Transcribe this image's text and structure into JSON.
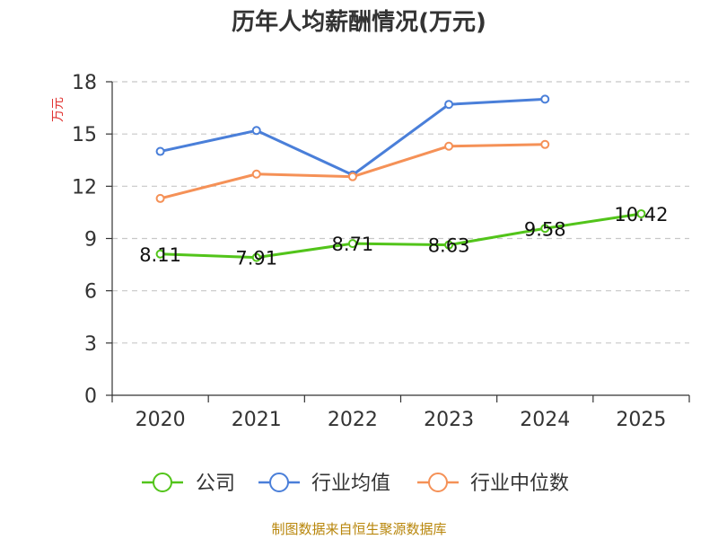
{
  "chart_data": {
    "type": "line",
    "title": "历年人均薪酬情况(万元)",
    "ylabel": "万元",
    "xlabel": "",
    "categories": [
      "2020",
      "2021",
      "2022",
      "2023",
      "2024",
      "2025"
    ],
    "ylim": [
      0,
      18
    ],
    "yticks": [
      0,
      3,
      6,
      9,
      12,
      15,
      18
    ],
    "grid": true,
    "legend_position": "bottom",
    "series": [
      {
        "name": "公司",
        "color": "#52c41a",
        "values": [
          8.11,
          7.91,
          8.71,
          8.63,
          9.58,
          10.42
        ],
        "labels": [
          "8.11",
          "7.91",
          "8.71",
          "8.63",
          "9.58",
          "10.42"
        ]
      },
      {
        "name": "行业均值",
        "color": "#4a7fd9",
        "values": [
          14.0,
          15.2,
          12.65,
          16.7,
          17.0,
          null
        ]
      },
      {
        "name": "行业中位数",
        "color": "#f59157",
        "values": [
          11.3,
          12.7,
          12.55,
          14.3,
          14.4,
          null
        ]
      }
    ]
  },
  "source": "制图数据来自恒生聚源数据库"
}
